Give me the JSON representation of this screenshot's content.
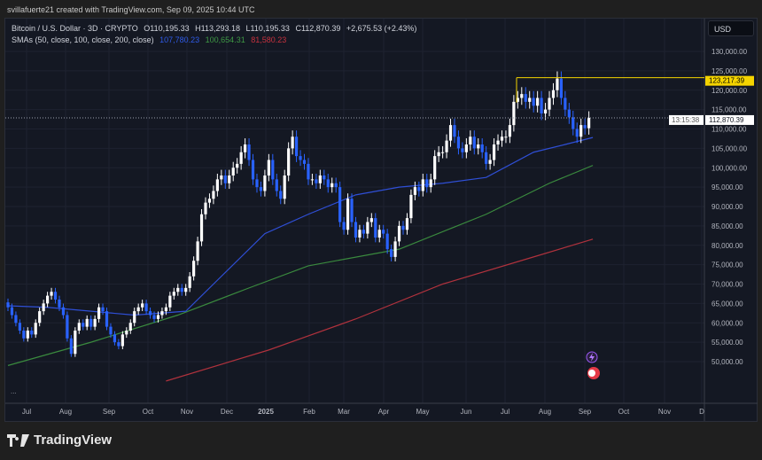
{
  "credit": "svillafuerte21 created with TradingView.com, Sep 09, 2025 10:44 UTC",
  "legend": {
    "symbol": "Bitcoin / U.S. Dollar · 3D · CRYPTO",
    "open": "O110,195.33",
    "high": "H113,293.18",
    "low": "L110,195.33",
    "close": "C112,870.39",
    "change": "+2,675.53 (+2.43%)",
    "sma_label": "SMAs (50, close, 100, close, 200, close)",
    "sma50": "107,780.23",
    "sma100": "100,654.31",
    "sma200": "81,580.23"
  },
  "currency_button": "USD",
  "more_label": "...",
  "logo_text": "TradingView",
  "colors": {
    "up": "#ffffff",
    "down": "#2962ff",
    "sma50": "#2f4fd6",
    "sma100": "#3a8a3e",
    "sma200": "#b0323d",
    "highline": "#f5d400",
    "bg": "#141823"
  },
  "chart_data": {
    "type": "candlestick",
    "interval": "3D",
    "yticks": [
      50000,
      55000,
      60000,
      65000,
      70000,
      75000,
      80000,
      85000,
      90000,
      95000,
      100000,
      105000,
      110000,
      115000,
      120000,
      125000,
      130000
    ],
    "ytick_labels": [
      "50,000.00",
      "55,000.00",
      "60,000.00",
      "65,000.00",
      "70,000.00",
      "75,000.00",
      "80,000.00",
      "85,000.00",
      "90,000.00",
      "95,000.00",
      "100,000.00",
      "105,000.00",
      "110,000.00",
      "115,000.00",
      "120,000.00",
      "125,000.00",
      "130,000.00"
    ],
    "ylim": [
      45000,
      135000
    ],
    "xtick_labels": [
      "Jul",
      "Aug",
      "Sep",
      "Oct",
      "Nov",
      "Dec",
      "2025",
      "Feb",
      "Mar",
      "Apr",
      "May",
      "Jun",
      "Jul",
      "Aug",
      "Sep",
      "Oct",
      "Nov",
      "D"
    ],
    "closes_k": [
      64,
      62,
      60,
      58,
      56,
      58,
      57,
      60,
      63,
      65,
      67,
      68,
      66,
      64,
      62,
      56,
      52,
      58,
      60,
      59,
      61,
      59,
      61,
      64,
      63,
      59,
      57,
      55,
      54,
      57,
      58,
      60,
      63,
      64,
      65,
      63,
      62,
      61,
      62,
      63,
      64,
      67,
      68,
      69,
      68,
      69,
      72,
      76,
      81,
      88,
      91,
      92,
      94,
      97,
      98,
      96,
      98,
      100,
      101,
      104,
      106,
      102,
      97,
      95,
      94,
      98,
      102,
      97,
      94,
      92,
      98,
      105,
      108,
      103,
      102,
      101,
      97,
      97,
      96,
      98,
      97,
      95,
      96,
      95,
      86,
      84,
      92,
      86,
      82,
      84,
      83,
      86,
      87,
      82,
      84,
      83,
      79,
      77,
      81,
      85,
      84,
      87,
      93,
      95,
      94,
      97,
      95,
      97,
      103,
      104,
      104,
      107,
      111,
      108,
      105,
      104,
      106,
      108,
      105,
      106,
      104,
      101,
      102,
      106,
      107,
      108,
      108,
      111,
      117,
      118,
      119,
      117,
      118,
      116,
      118,
      114,
      115,
      118,
      120,
      123,
      118,
      115,
      113,
      110,
      108,
      111,
      110.2,
      112.87
    ],
    "sma50_k": [
      [
        0,
        64.4
      ],
      [
        10,
        64
      ],
      [
        32,
        62
      ],
      [
        45,
        63
      ],
      [
        54,
        72
      ],
      [
        65,
        83
      ],
      [
        76,
        88
      ],
      [
        88,
        93
      ],
      [
        99,
        95
      ],
      [
        110,
        96
      ],
      [
        121,
        97.5
      ],
      [
        133,
        104
      ],
      [
        141,
        106
      ],
      [
        148,
        107.8
      ]
    ],
    "sma100_k": [
      [
        0,
        49
      ],
      [
        21,
        55
      ],
      [
        43,
        62
      ],
      [
        61,
        69
      ],
      [
        76,
        74.7
      ],
      [
        99,
        79
      ],
      [
        121,
        88
      ],
      [
        137,
        96
      ],
      [
        148,
        100.6
      ]
    ],
    "sma200_k": [
      [
        40,
        45
      ],
      [
        66,
        53
      ],
      [
        88,
        61
      ],
      [
        110,
        70
      ],
      [
        133,
        77
      ],
      [
        148,
        81.58
      ]
    ],
    "high_marker": {
      "value": 123217.39,
      "label": "123,217.39"
    },
    "last_price": {
      "value": 112870.39,
      "label": "112,870.39",
      "countdown": "13:15:38"
    }
  }
}
